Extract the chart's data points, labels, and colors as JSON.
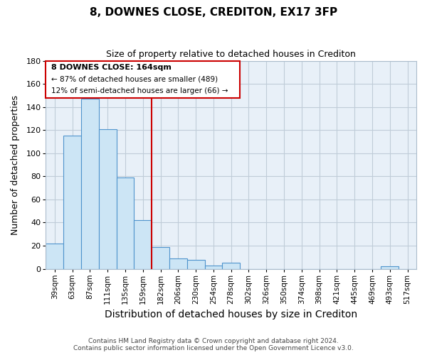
{
  "title": "8, DOWNES CLOSE, CREDITON, EX17 3FP",
  "subtitle": "Size of property relative to detached houses in Crediton",
  "xlabel": "Distribution of detached houses by size in Crediton",
  "ylabel": "Number of detached properties",
  "categories": [
    "39sqm",
    "63sqm",
    "87sqm",
    "111sqm",
    "135sqm",
    "159sqm",
    "182sqm",
    "206sqm",
    "230sqm",
    "254sqm",
    "278sqm",
    "302sqm",
    "326sqm",
    "350sqm",
    "374sqm",
    "398sqm",
    "421sqm",
    "445sqm",
    "469sqm",
    "493sqm",
    "517sqm"
  ],
  "values": [
    22,
    115,
    147,
    121,
    79,
    42,
    19,
    9,
    8,
    3,
    5,
    0,
    0,
    0,
    0,
    0,
    0,
    0,
    0,
    2,
    0
  ],
  "bar_color": "#cce5f5",
  "bar_edge_color": "#4f94cd",
  "vline_color": "#cc0000",
  "ylim": [
    0,
    180
  ],
  "yticks": [
    0,
    20,
    40,
    60,
    80,
    100,
    120,
    140,
    160,
    180
  ],
  "annotation_title": "8 DOWNES CLOSE: 164sqm",
  "annotation_line1": "← 87% of detached houses are smaller (489)",
  "annotation_line2": "12% of semi-detached houses are larger (66) →",
  "footer_line1": "Contains HM Land Registry data © Crown copyright and database right 2024.",
  "footer_line2": "Contains public sector information licensed under the Open Government Licence v3.0.",
  "background_color": "#ffffff",
  "plot_bg_color": "#e8f0f8",
  "grid_color": "#c0ccd8",
  "annotation_box_color": "#ffffff",
  "annotation_box_edge": "#cc0000",
  "title_fontsize": 11,
  "subtitle_fontsize": 9,
  "tick_fontsize": 7.5,
  "ytick_fontsize": 8,
  "xlabel_fontsize": 10,
  "ylabel_fontsize": 9
}
